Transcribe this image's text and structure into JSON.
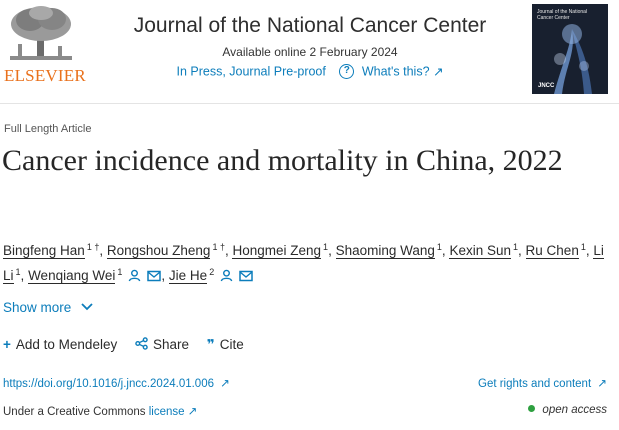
{
  "header": {
    "publisher": "ELSEVIER",
    "journal_title": "Journal of the National Cancer Center",
    "available_online": "Available online 2 February 2024",
    "status": "In Press, Journal Pre-proof",
    "whats_this": "What's this?",
    "external_arrow": "↗",
    "cover_title": "Journal of the National Cancer Center",
    "cover_label": "JNCC"
  },
  "article": {
    "type": "Full Length Article",
    "title": "Cancer incidence and mortality in China, 2022",
    "authors": [
      {
        "name": "Bingfeng Han",
        "sup": "1 †",
        "sep": ","
      },
      {
        "name": "Rongshou Zheng",
        "sup": "1 †",
        "sep": ","
      },
      {
        "name": "Hongmei Zeng",
        "sup": "1",
        "sep": ","
      },
      {
        "name": "Shaoming Wang",
        "sup": "1",
        "sep": ","
      },
      {
        "name": "Kexin Sun",
        "sup": "1",
        "sep": ","
      },
      {
        "name": "Ru Chen",
        "sup": "1",
        "sep": ","
      },
      {
        "name": "Li Li",
        "sup": "1",
        "sep": ","
      },
      {
        "name": "Wenqiang Wei",
        "sup": "1",
        "sep": ","
      },
      {
        "name": "Jie He",
        "sup": "2",
        "sep": ""
      }
    ]
  },
  "links": {
    "show_more": "Show more",
    "add_to_mendeley": "Add to Mendeley",
    "share": "Share",
    "cite": "Cite",
    "doi": "https://doi.org/10.1016/j.jncc.2024.01.006",
    "rights": "Get rights and content",
    "license_prefix": "Under a Creative Commons",
    "license_link": "license",
    "open_access": "open access"
  },
  "colors": {
    "link": "#0c7dbb",
    "publisher_orange": "#e9711c",
    "open_access_green": "#2ea040"
  }
}
